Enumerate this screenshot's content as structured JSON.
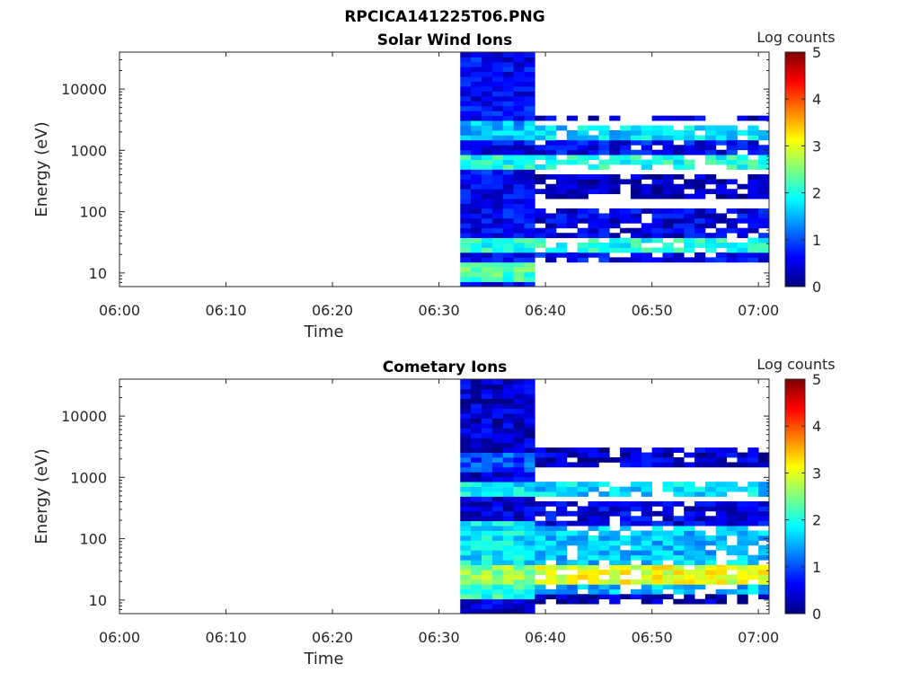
{
  "figure_title": "RPCICA141225T06.PNG",
  "chart_data": [
    {
      "type": "heatmap",
      "title": "Solar Wind Ions",
      "xlabel": "Time",
      "ylabel": "Energy (eV)",
      "x_ticks": [
        "06:00",
        "06:10",
        "06:20",
        "06:30",
        "06:40",
        "06:50",
        "07:00"
      ],
      "xlim": [
        "06:00",
        "07:01"
      ],
      "y_scale": "log",
      "y_ticks": [
        "10",
        "100",
        "1000",
        "10000"
      ],
      "ylim": [
        6,
        40000
      ],
      "colorbar": {
        "label": "Log counts",
        "range": [
          0,
          5
        ],
        "ticks": [
          "0",
          "1",
          "2",
          "3",
          "4",
          "5"
        ],
        "colormap": "jet"
      },
      "data_start": "06:32",
      "data_end": "07:01",
      "tracks": [
        {
          "from": "06:32",
          "to": "06:39",
          "bands": [
            {
              "e": [
                6,
                40000
              ],
              "v": 0.6
            },
            {
              "e": [
                20,
                40
              ],
              "v": 2.0
            },
            {
              "e": [
                7,
                15
              ],
              "v": 2.2
            },
            {
              "e": [
                500,
                800
              ],
              "v": 2.0
            },
            {
              "e": [
                1500,
                3000
              ],
              "v": 1.5
            }
          ]
        },
        {
          "from": "06:39",
          "to": "07:01",
          "bands": [
            {
              "e": [
                15,
                20
              ],
              "v": 0.6
            },
            {
              "e": [
                20,
                40
              ],
              "v": 2.0
            },
            {
              "e": [
                40,
                120
              ],
              "v": 0.5
            },
            {
              "e": [
                150,
                400
              ],
              "v": 0.3
            },
            {
              "e": [
                500,
                800
              ],
              "v": 2.0
            },
            {
              "e": [
                900,
                1400
              ],
              "v": 0.6
            },
            {
              "e": [
                1500,
                2500
              ],
              "v": 1.7
            },
            {
              "e": [
                3000,
                3500
              ],
              "v": 0.4
            }
          ]
        }
      ]
    },
    {
      "type": "heatmap",
      "title": "Cometary Ions",
      "xlabel": "Time",
      "ylabel": "Energy (eV)",
      "x_ticks": [
        "06:00",
        "06:10",
        "06:20",
        "06:30",
        "06:40",
        "06:50",
        "07:00"
      ],
      "xlim": [
        "06:00",
        "07:01"
      ],
      "y_scale": "log",
      "y_ticks": [
        "10",
        "100",
        "1000",
        "10000"
      ],
      "ylim": [
        6,
        40000
      ],
      "colorbar": {
        "label": "Log counts",
        "range": [
          0,
          5
        ],
        "ticks": [
          "0",
          "1",
          "2",
          "3",
          "4",
          "5"
        ],
        "colormap": "jet"
      },
      "data_start": "06:32",
      "data_end": "07:01",
      "tracks": [
        {
          "from": "06:32",
          "to": "06:39",
          "bands": [
            {
              "e": [
                6,
                40000
              ],
              "v": 0.4
            },
            {
              "e": [
                30,
                200
              ],
              "v": 1.8
            },
            {
              "e": [
                18,
                35
              ],
              "v": 2.6
            },
            {
              "e": [
                10,
                18
              ],
              "v": 2.1
            },
            {
              "e": [
                500,
                800
              ],
              "v": 1.8
            },
            {
              "e": [
                1200,
                2500
              ],
              "v": 1.0
            }
          ]
        },
        {
          "from": "06:39",
          "to": "07:01",
          "bands": [
            {
              "e": [
                8,
                12
              ],
              "v": 0.3
            },
            {
              "e": [
                12,
                18
              ],
              "v": 1.5
            },
            {
              "e": [
                18,
                35
              ],
              "v": 3.0
            },
            {
              "e": [
                35,
                150
              ],
              "v": 1.6
            },
            {
              "e": [
                150,
                400
              ],
              "v": 0.5
            },
            {
              "e": [
                500,
                800
              ],
              "v": 1.7
            },
            {
              "e": [
                1500,
                3000
              ],
              "v": 0.4
            }
          ]
        }
      ]
    }
  ]
}
